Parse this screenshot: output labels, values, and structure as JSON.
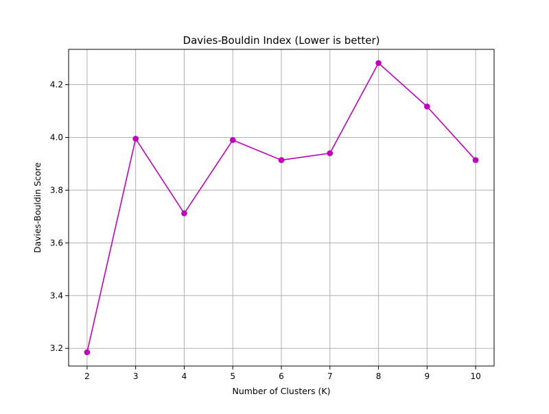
{
  "chart_data": {
    "type": "line",
    "title": "Davies-Bouldin Index (Lower is better)",
    "xlabel": "Number of Clusters (K)",
    "ylabel": "Davies-Bouldin Score",
    "x": [
      2,
      3,
      4,
      5,
      6,
      7,
      8,
      9,
      10
    ],
    "series": [
      {
        "values": [
          3.185,
          3.995,
          3.712,
          3.99,
          3.914,
          3.94,
          4.282,
          4.117,
          3.914
        ],
        "color": "#bf00bf",
        "marker": "circle"
      }
    ],
    "xlim": [
      1.62,
      10.38
    ],
    "ylim": [
      3.133,
      4.334
    ],
    "x_ticks": [
      "2",
      "3",
      "4",
      "5",
      "6",
      "7",
      "8",
      "9",
      "10"
    ],
    "y_ticks": [
      "3.2",
      "3.4",
      "3.6",
      "3.8",
      "4.0",
      "4.2"
    ],
    "grid": true,
    "legend": "none"
  }
}
